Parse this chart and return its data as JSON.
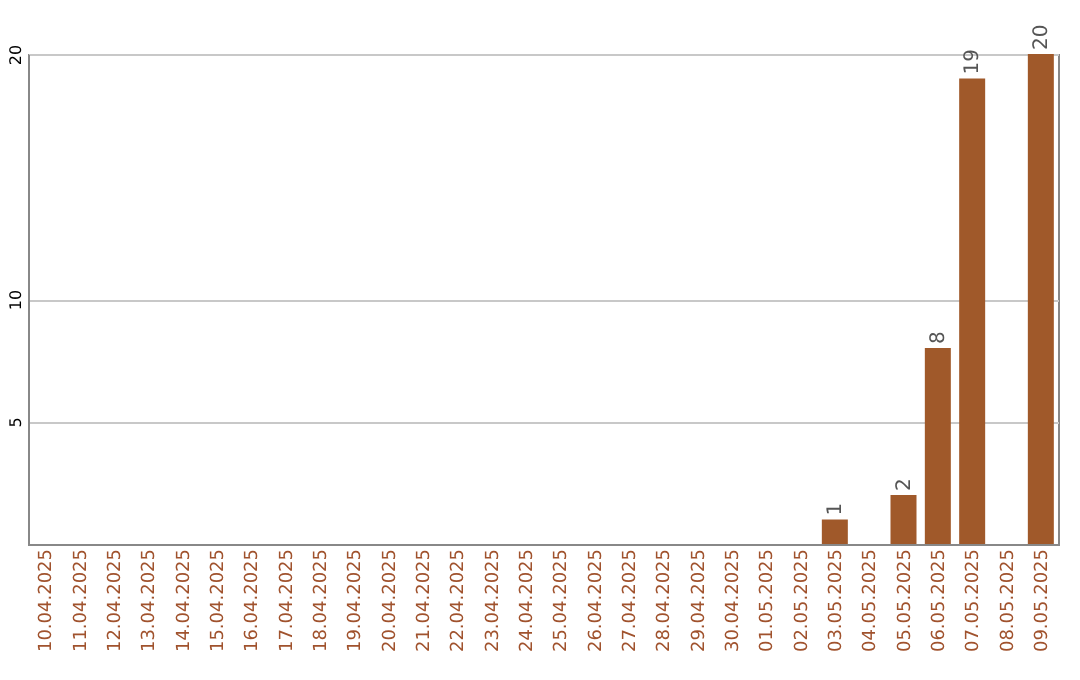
{
  "chart_data": {
    "type": "bar",
    "categories": [
      "10.04.2025",
      "11.04.2025",
      "12.04.2025",
      "13.04.2025",
      "14.04.2025",
      "15.04.2025",
      "16.04.2025",
      "17.04.2025",
      "18.04.2025",
      "19.04.2025",
      "20.04.2025",
      "21.04.2025",
      "22.04.2025",
      "23.04.2025",
      "24.04.2025",
      "25.04.2025",
      "26.04.2025",
      "27.04.2025",
      "28.04.2025",
      "29.04.2025",
      "30.04.2025",
      "01.05.2025",
      "02.05.2025",
      "03.05.2025",
      "04.05.2025",
      "05.05.2025",
      "06.05.2025",
      "07.05.2025",
      "08.05.2025",
      "09.05.2025"
    ],
    "values": [
      null,
      null,
      null,
      null,
      null,
      null,
      null,
      null,
      null,
      null,
      null,
      null,
      null,
      null,
      null,
      null,
      null,
      null,
      null,
      null,
      null,
      null,
      null,
      1,
      null,
      2,
      8,
      19,
      null,
      20
    ],
    "color": "#a0592a",
    "ylim": [
      0,
      20
    ],
    "yticks": [
      5,
      10,
      20
    ],
    "grid": "y",
    "data_labels": true
  }
}
